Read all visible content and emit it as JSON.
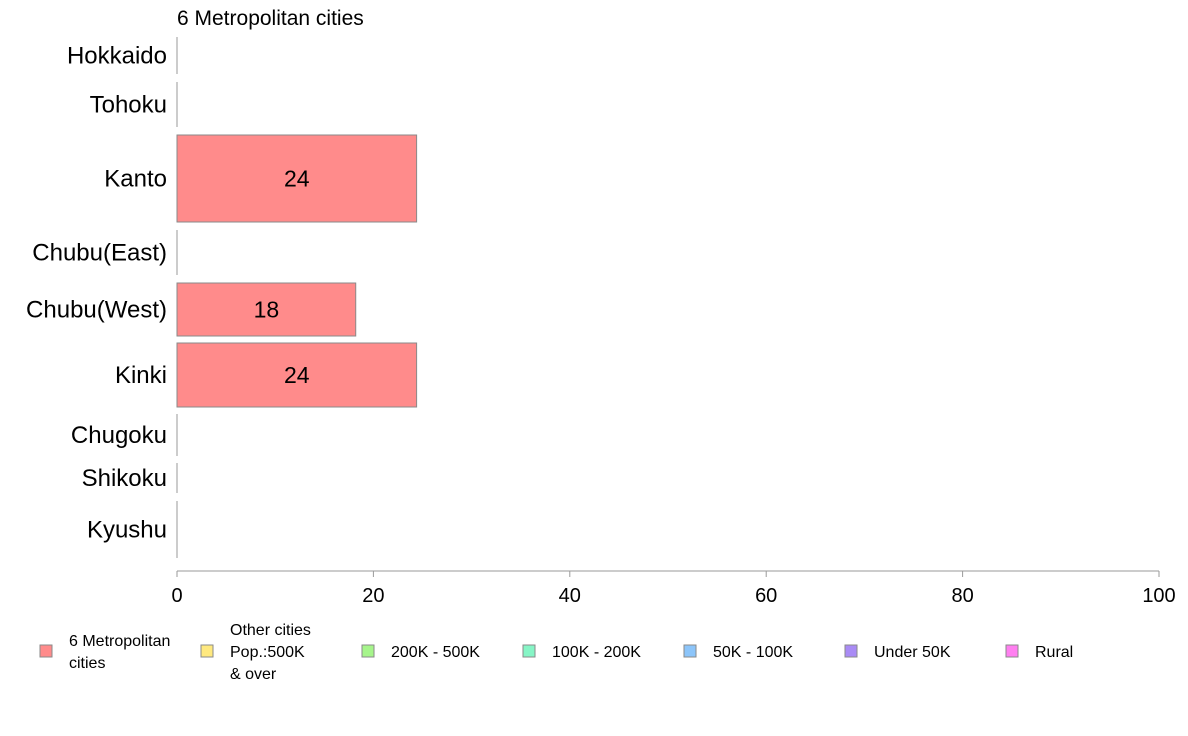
{
  "chart_data": {
    "type": "bar",
    "orientation": "horizontal",
    "title": "6 Metropolitan cities",
    "categories": [
      "Hokkaido",
      "Tohoku",
      "Kanto",
      "Chubu(East)",
      "Chubu(West)",
      "Kinki",
      "Chugoku",
      "Shikoku",
      "Kyushu"
    ],
    "series": [
      {
        "name": "6 Metropolitan cities",
        "color": "#ff8b8b",
        "values": [
          0,
          0,
          24.4,
          0,
          18.2,
          24.4,
          0,
          0,
          0
        ],
        "labels": [
          "",
          "",
          "24",
          "",
          "18",
          "24",
          "",
          "",
          ""
        ]
      }
    ],
    "xlim": [
      0,
      100
    ],
    "xticks": [
      "0",
      "20",
      "40",
      "60",
      "80",
      "100"
    ],
    "xlabel": "",
    "ylabel": "",
    "grid": false,
    "legend_position": "bottom",
    "legend": [
      {
        "lines": [
          "6 Metropolitan",
          " cities"
        ],
        "color": "#ff8b8b"
      },
      {
        "lines": [
          "Other cities",
          "Pop.:500K",
          " & over"
        ],
        "color": "#ffe97f"
      },
      {
        "lines": [
          "200K - 500K"
        ],
        "color": "#a6f58b"
      },
      {
        "lines": [
          "100K - 200K"
        ],
        "color": "#86f5c6"
      },
      {
        "lines": [
          "50K - 100K"
        ],
        "color": "#8cc5fa"
      },
      {
        "lines": [
          "Under 50K"
        ],
        "color": "#a98bf5"
      },
      {
        "lines": [
          "Rural"
        ],
        "color": "#ff7ff0"
      }
    ]
  }
}
